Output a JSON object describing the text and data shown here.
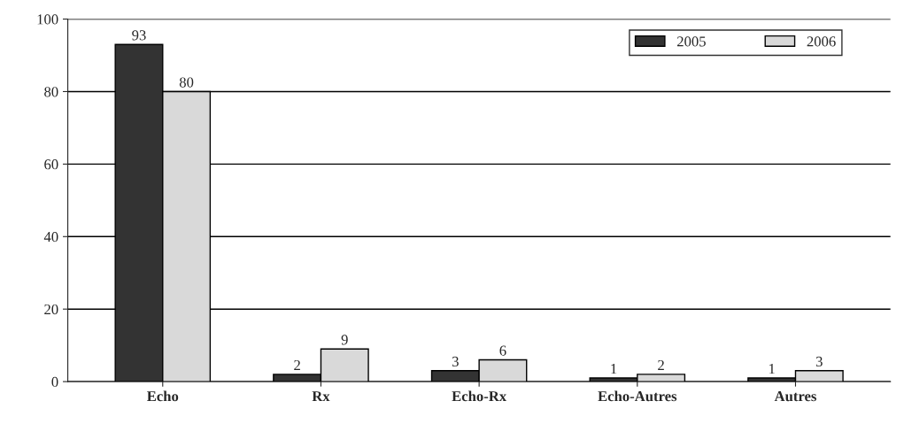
{
  "chart_data": {
    "type": "bar",
    "categories": [
      "Echo",
      "Rx",
      "Echo-Rx",
      "Echo-Autres",
      "Autres"
    ],
    "series": [
      {
        "name": "2005",
        "color": "#333333",
        "values": [
          93,
          2,
          3,
          1,
          1
        ]
      },
      {
        "name": "2006",
        "color": "#d9d9d9",
        "values": [
          80,
          9,
          6,
          2,
          3
        ]
      }
    ],
    "ylim": [
      0,
      100
    ],
    "yticks": [
      0,
      20,
      40,
      60,
      80,
      100
    ],
    "grid": "y",
    "legend": "top right",
    "data_labels": true
  }
}
